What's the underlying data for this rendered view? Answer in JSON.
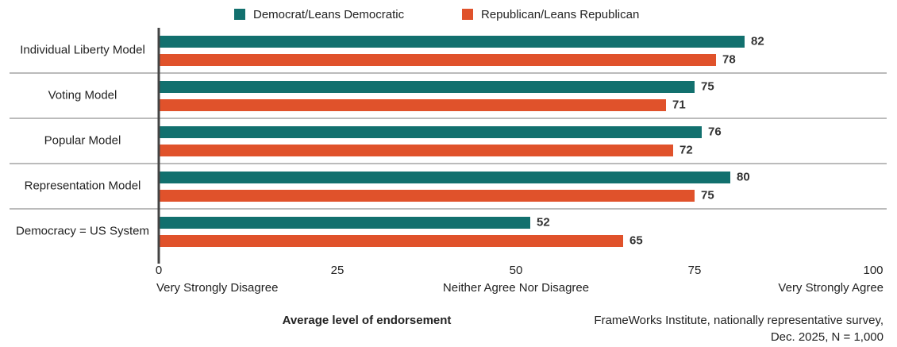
{
  "chart_data": {
    "type": "bar",
    "orientation": "horizontal",
    "categories": [
      "Individual Liberty Model",
      "Voting Model",
      "Popular Model",
      "Representation Model",
      "Democracy = US System"
    ],
    "series": [
      {
        "name": "Democrat/Leans Democratic",
        "color": "#12706e",
        "values": [
          82,
          75,
          76,
          80,
          52
        ]
      },
      {
        "name": "Republican/Leans Republican",
        "color": "#e0522b",
        "values": [
          78,
          71,
          72,
          75,
          65
        ]
      }
    ],
    "xlim": [
      0,
      100
    ],
    "xticks": [
      0,
      25,
      50,
      75,
      100
    ],
    "scale_labels": [
      {
        "value": 0,
        "label": "Very Strongly Disagree"
      },
      {
        "value": 50,
        "label": "Neither Agree Nor Disagree"
      },
      {
        "value": 100,
        "label": "Very Strongly Agree"
      }
    ],
    "x_label": "Average level of endorsement",
    "source": [
      "FrameWorks Institute, nationally representative survey,",
      "Dec. 2025, N = 1,000"
    ],
    "legend": "top",
    "grid": false
  }
}
